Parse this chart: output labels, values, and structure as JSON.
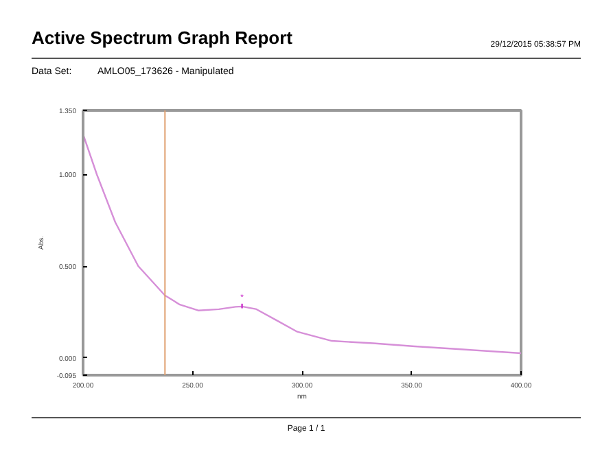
{
  "chart_data": {
    "type": "line",
    "title": "Active Spectrum Graph Report",
    "subtitle": "AMLO05_173626 - Manipulated",
    "xlabel": "nm",
    "ylabel": "Abs.",
    "x": [
      200,
      206.3,
      214.7,
      225.2,
      237.4,
      244.2,
      252.6,
      262,
      269.6,
      272.6,
      278.9,
      288.4,
      297.8,
      313.6,
      332.5,
      351.4,
      370,
      400
    ],
    "series": [
      {
        "color": "#d68fd8",
        "values": [
          1.22,
          1.0,
          0.74,
          0.5,
          0.34,
          0.29,
          0.258,
          0.265,
          0.278,
          0.28,
          0.266,
          0.204,
          0.142,
          0.092,
          0.079,
          0.062,
          0.048,
          0.025
        ]
      }
    ],
    "xlim": [
      200,
      400
    ],
    "xticks": [
      {
        "value": 200,
        "label": "200.00"
      },
      {
        "value": 250,
        "label": "250.00"
      },
      {
        "value": 300,
        "label": "300.00"
      },
      {
        "value": 350,
        "label": "350.00"
      },
      {
        "value": 400,
        "label": "400.00"
      }
    ],
    "ylim": [
      -0.095,
      1.35
    ],
    "yticks": [
      {
        "value": -0.095,
        "label": "-0.095"
      },
      {
        "value": 0,
        "label": "0.000"
      },
      {
        "value": 0.5,
        "label": "0.500"
      },
      {
        "value": 1.0,
        "label": "1.000"
      },
      {
        "value": 1.35,
        "label": "1.350"
      }
    ],
    "ref_lines": [
      {
        "axis": "x",
        "value": 237.4,
        "label": null,
        "color": "#e0a070"
      }
    ],
    "annotations": [
      "29/12/2015 05:38:57 PM",
      "Data Set:",
      "Page 1 / 1",
      {
        "text": "*",
        "x": 272.6,
        "y": 0.3
      }
    ],
    "grid": false
  }
}
